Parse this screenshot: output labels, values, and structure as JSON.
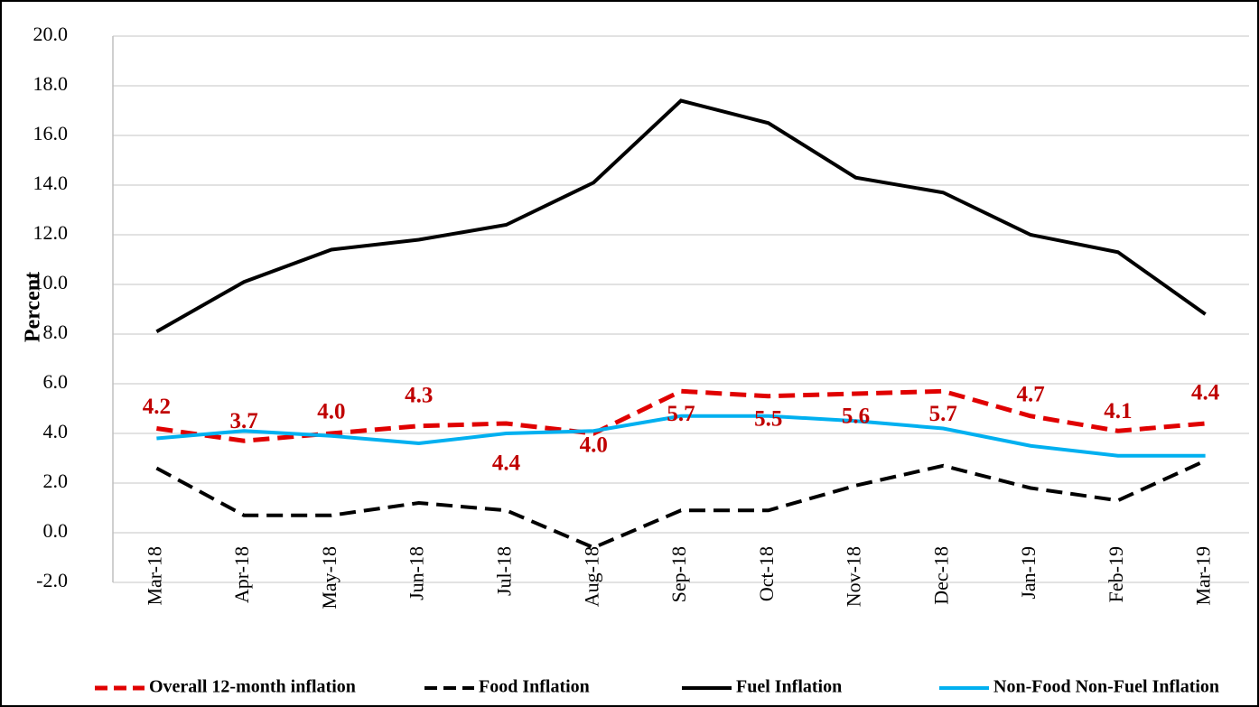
{
  "chart_data": {
    "type": "line",
    "y_label": "Percent",
    "categories": [
      "Mar-18",
      "Apr-18",
      "May-18",
      "Jun-18",
      "Jul-18",
      "Aug-18",
      "Sep-18",
      "Oct-18",
      "Nov-18",
      "Dec-18",
      "Jan-19",
      "Feb-19",
      "Mar-19"
    ],
    "series": [
      {
        "name": "Overall 12-month inflation",
        "color": "#e00000",
        "dash": "dashed",
        "values": [
          4.2,
          3.7,
          4.0,
          4.3,
          4.4,
          4.0,
          5.7,
          5.5,
          5.6,
          5.7,
          4.7,
          4.1,
          4.4
        ],
        "value_labels": [
          "4.2",
          "3.7",
          "4.0",
          "4.3",
          "4.4",
          "4.0",
          "5.7",
          "5.5",
          "5.6",
          "5.7",
          "4.7",
          "4.1",
          "4.4"
        ]
      },
      {
        "name": "Food Inflation",
        "color": "#000000",
        "dash": "dashed",
        "values": [
          2.6,
          0.7,
          0.7,
          1.2,
          0.9,
          -0.6,
          0.9,
          0.9,
          1.9,
          2.7,
          1.8,
          1.3,
          2.9
        ]
      },
      {
        "name": "Fuel Inflation",
        "color": "#000000",
        "dash": "solid",
        "values": [
          8.1,
          10.1,
          11.4,
          11.8,
          12.4,
          14.1,
          17.4,
          16.5,
          14.3,
          13.7,
          12.0,
          11.3,
          8.8
        ]
      },
      {
        "name": "Non-Food Non-Fuel Inflation",
        "color": "#00b0f0",
        "dash": "solid",
        "values": [
          3.8,
          4.1,
          3.9,
          3.6,
          4.0,
          4.1,
          4.7,
          4.7,
          4.5,
          4.2,
          3.5,
          3.1,
          3.1
        ]
      }
    ],
    "ylim": [
      -2,
      20
    ],
    "yticks": [
      {
        "value": -2,
        "label": "-2.0"
      },
      {
        "value": 0,
        "label": "0.0"
      },
      {
        "value": 2,
        "label": "2.0"
      },
      {
        "value": 4,
        "label": "4.0"
      },
      {
        "value": 6,
        "label": "6.0"
      },
      {
        "value": 8,
        "label": "8.0"
      },
      {
        "value": 10,
        "label": "10.0"
      },
      {
        "value": 12,
        "label": "12.0"
      },
      {
        "value": 14,
        "label": "14.0"
      },
      {
        "value": 16,
        "label": "16.0"
      },
      {
        "value": 18,
        "label": "18.0"
      },
      {
        "value": 20,
        "label": "20.0"
      }
    ],
    "grid": true,
    "legend": "bottom"
  }
}
